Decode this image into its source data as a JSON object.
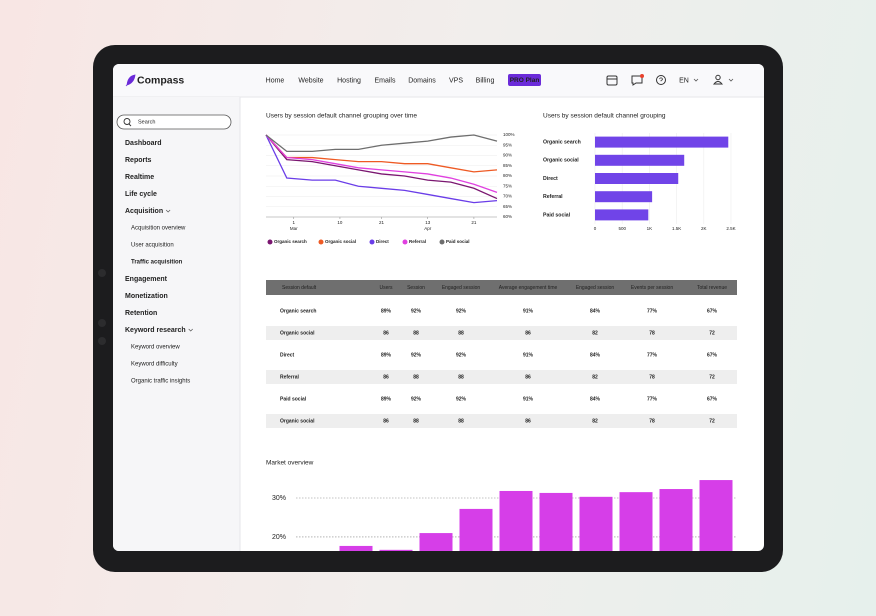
{
  "nav": {
    "logo": "Compass",
    "items": [
      "Home",
      "Website",
      "Hosting",
      "Emails",
      "Domains",
      "VPS",
      "Billing"
    ],
    "pro": "PRO Plan",
    "lang": "EN"
  },
  "sidebar": {
    "search": "Search",
    "items": [
      {
        "label": "Dashboard"
      },
      {
        "label": "Reports"
      },
      {
        "label": "Realtime"
      },
      {
        "label": "Life cycle"
      },
      {
        "label": "Acquisition",
        "children": [
          {
            "label": "Acquisition overview"
          },
          {
            "label": "User acquisition"
          },
          {
            "label": "Traffic acquisition",
            "active": true
          }
        ]
      },
      {
        "label": "Engagement"
      },
      {
        "label": "Monetization"
      },
      {
        "label": "Retention"
      },
      {
        "label": "Keyword research",
        "children": [
          {
            "label": "Keyword overview"
          },
          {
            "label": "Keyword difficulty"
          },
          {
            "label": "Organic traffic insights"
          }
        ]
      }
    ]
  },
  "chart_data": [
    {
      "type": "line",
      "title": "Users by session default channel grouping over time",
      "x": [
        0,
        9,
        20,
        30,
        40,
        50,
        60,
        70,
        80,
        90,
        100
      ],
      "xlim": [
        0,
        100
      ],
      "xticks": [
        {
          "value": 12,
          "label": "1",
          "sublabel": "Mar"
        },
        {
          "value": 32,
          "label": "10"
        },
        {
          "value": 50,
          "label": "21"
        },
        {
          "value": 70,
          "label": "13",
          "sublabel": "Apr"
        },
        {
          "value": 90,
          "label": "21"
        }
      ],
      "ylim": [
        60,
        100
      ],
      "yticks": [
        {
          "value": 100,
          "label": "100%"
        },
        {
          "value": 95,
          "label": "95%"
        },
        {
          "value": 90,
          "label": "90%"
        },
        {
          "value": 85,
          "label": "85%"
        },
        {
          "value": 80,
          "label": "80%"
        },
        {
          "value": 75,
          "label": "75%"
        },
        {
          "value": 70,
          "label": "70%"
        },
        {
          "value": 65,
          "label": "65%"
        },
        {
          "value": 60,
          "label": "60%"
        }
      ],
      "grid": true,
      "series": [
        {
          "name": "Organic search",
          "color": "#7a1670",
          "values": [
            100,
            88,
            87,
            85,
            83,
            81,
            80,
            78,
            77,
            74,
            69
          ]
        },
        {
          "name": "Organic social",
          "color": "#ee5a24",
          "values": [
            100,
            89,
            89,
            88,
            87,
            87,
            86,
            86,
            84,
            82,
            83
          ]
        },
        {
          "name": "Direct",
          "color": "#6a3de8",
          "values": [
            100,
            79,
            78,
            78,
            75,
            74,
            73,
            71,
            69,
            67,
            68
          ]
        },
        {
          "name": "Referral",
          "color": "#e040e0",
          "values": [
            100,
            89,
            88,
            86,
            84,
            83,
            82,
            81,
            79,
            76,
            72
          ]
        },
        {
          "name": "Paid social",
          "color": "#6e6e6e",
          "values": [
            100,
            92,
            92,
            93,
            93,
            95,
            96,
            97,
            99,
            100,
            97
          ]
        }
      ]
    },
    {
      "type": "hbar",
      "title": "Users by session default channel grouping",
      "categories": [
        "Organic search",
        "Organic social",
        "Direct",
        "Referral",
        "Paid social"
      ],
      "values": [
        2450,
        1640,
        1530,
        1050,
        980
      ],
      "color": "#7044e8",
      "xlim": [
        0,
        2500
      ],
      "xticks": [
        0,
        500,
        {
          "value": 1000,
          "label": "1K"
        },
        {
          "value": 1500,
          "label": "1.5K"
        },
        {
          "value": 2000,
          "label": "2K"
        },
        {
          "value": 2500,
          "label": "2.5K"
        }
      ],
      "grid": true
    },
    {
      "type": "bar",
      "title": "Market overview",
      "categories": [
        null,
        null,
        null,
        null,
        null,
        null,
        null,
        null,
        null,
        null
      ],
      "values": [
        17.7,
        16.7,
        21,
        27.2,
        31.8,
        31.3,
        30.3,
        31.5,
        32.3,
        34.6
      ],
      "color": "#d63ee8",
      "ylim": [
        16.4,
        35.9
      ],
      "yticks": [
        {
          "value": 20,
          "label": "20%"
        },
        {
          "value": 30,
          "label": "30%"
        }
      ],
      "grid": true
    }
  ],
  "table": {
    "columns": [
      "Session default",
      "Users",
      "Session",
      "Engaged session",
      "Average engagement time",
      "Engaged session",
      "Events per session",
      "Total revenue"
    ],
    "rows": [
      [
        "Organic search",
        "89%",
        "92%",
        "92%",
        "91%",
        "84%",
        "77%",
        "67%"
      ],
      [
        "Organic social",
        "86",
        "88",
        "88",
        "86",
        "82",
        "78",
        "72"
      ],
      [
        "Direct",
        "89%",
        "92%",
        "92%",
        "91%",
        "84%",
        "77%",
        "67%"
      ],
      [
        "Referral",
        "86",
        "88",
        "88",
        "86",
        "82",
        "78",
        "72"
      ],
      [
        "Paid social",
        "89%",
        "92%",
        "92%",
        "91%",
        "84%",
        "77%",
        "67%"
      ],
      [
        "Organic social",
        "86",
        "88",
        "88",
        "86",
        "82",
        "78",
        "72"
      ]
    ]
  }
}
